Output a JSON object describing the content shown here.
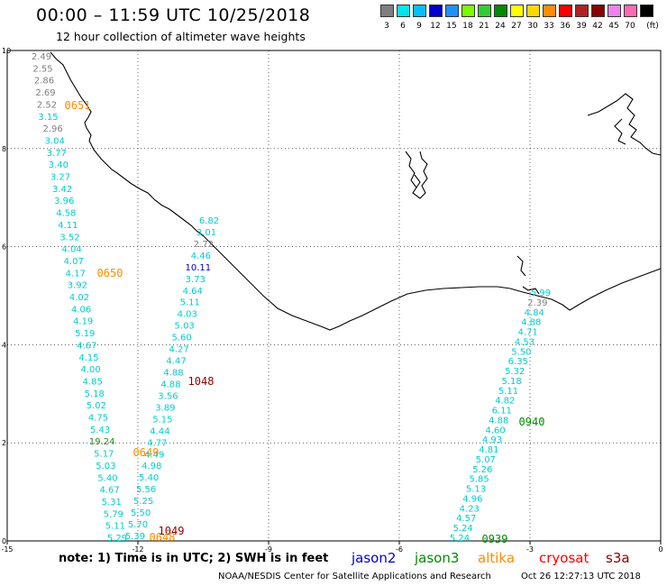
{
  "title": "00:00 – 11:59 UTC 10/25/2018",
  "subtitle": "12 hour collection of altimeter wave heights",
  "legend": {
    "unit_label": "(ft)",
    "bins": [
      {
        "label": "3",
        "color": "#7f7f7f"
      },
      {
        "label": "6",
        "color": "#00e5ee"
      },
      {
        "label": "9",
        "color": "#00bfff"
      },
      {
        "label": "12",
        "color": "#0000cd"
      },
      {
        "label": "15",
        "color": "#1e90ff"
      },
      {
        "label": "18",
        "color": "#7cfc00"
      },
      {
        "label": "21",
        "color": "#32cd32"
      },
      {
        "label": "24",
        "color": "#008b00"
      },
      {
        "label": "27",
        "color": "#ffff00"
      },
      {
        "label": "30",
        "color": "#ffd700"
      },
      {
        "label": "33",
        "color": "#ff8c00"
      },
      {
        "label": "36",
        "color": "#ff0000"
      },
      {
        "label": "39",
        "color": "#b22222"
      },
      {
        "label": "42",
        "color": "#8b0000"
      },
      {
        "label": "45",
        "color": "#ee82ee"
      },
      {
        "label": "70",
        "color": "#ff69b4"
      },
      {
        "label": "",
        "color": "#000000"
      }
    ]
  },
  "axes": {
    "x_ticks": [
      "-15",
      "-12",
      "-9",
      "-6",
      "-3",
      "0"
    ],
    "y_ticks": [
      "0",
      "2",
      "4",
      "6",
      "8",
      "10"
    ]
  },
  "tracks": [
    {
      "name": "track-west",
      "points": [
        {
          "v": "2.49",
          "c": "#7f7f7f"
        },
        {
          "v": "2.55",
          "c": "#7f7f7f"
        },
        {
          "v": "2.86",
          "c": "#7f7f7f"
        },
        {
          "v": "2.69",
          "c": "#7f7f7f"
        },
        {
          "v": "2.52",
          "c": "#7f7f7f"
        },
        {
          "v": "3.15",
          "c": "#00cdcd"
        },
        {
          "v": "2.96",
          "c": "#7f7f7f"
        },
        {
          "v": "3.04",
          "c": "#00cdcd"
        },
        {
          "v": "3.77",
          "c": "#00cdcd"
        },
        {
          "v": "3.40",
          "c": "#00cdcd"
        },
        {
          "v": "3.27",
          "c": "#00cdcd"
        },
        {
          "v": "3.42",
          "c": "#00cdcd"
        },
        {
          "v": "3.96",
          "c": "#00cdcd"
        },
        {
          "v": "4.58",
          "c": "#00cdcd"
        },
        {
          "v": "4.11",
          "c": "#00cdcd"
        },
        {
          "v": "3.52",
          "c": "#00cdcd"
        },
        {
          "v": "4.04",
          "c": "#00cdcd"
        },
        {
          "v": "4.07",
          "c": "#00cdcd"
        },
        {
          "v": "4.17",
          "c": "#00cdcd"
        },
        {
          "v": "3.92",
          "c": "#00cdcd"
        },
        {
          "v": "4.02",
          "c": "#00cdcd"
        },
        {
          "v": "4.06",
          "c": "#00cdcd"
        },
        {
          "v": "4.19",
          "c": "#00cdcd"
        },
        {
          "v": "5.19",
          "c": "#00cdcd"
        },
        {
          "v": "4.67",
          "c": "#00cdcd"
        },
        {
          "v": "4.15",
          "c": "#00cdcd"
        },
        {
          "v": "4.00",
          "c": "#00cdcd"
        },
        {
          "v": "4.85",
          "c": "#00cdcd"
        },
        {
          "v": "5.18",
          "c": "#00cdcd"
        },
        {
          "v": "5.02",
          "c": "#00cdcd"
        },
        {
          "v": "4.75",
          "c": "#00cdcd"
        },
        {
          "v": "5.43",
          "c": "#00cdcd"
        },
        {
          "v": "19.24",
          "c": "#228b22"
        },
        {
          "v": "5.17",
          "c": "#00cdcd"
        },
        {
          "v": "5.03",
          "c": "#00cdcd"
        },
        {
          "v": "5.40",
          "c": "#00cdcd"
        },
        {
          "v": "4.67",
          "c": "#00cdcd"
        },
        {
          "v": "5.31",
          "c": "#00cdcd"
        },
        {
          "v": "5.79",
          "c": "#00cdcd"
        },
        {
          "v": "5.11",
          "c": "#00cdcd"
        },
        {
          "v": "5.29",
          "c": "#00cdcd"
        }
      ]
    },
    {
      "name": "track-middle",
      "points": [
        {
          "v": "6.82",
          "c": "#00cdcd"
        },
        {
          "v": "3.01",
          "c": "#00cdcd"
        },
        {
          "v": "2.72",
          "c": "#7f7f7f"
        },
        {
          "v": "4.46",
          "c": "#00cdcd"
        },
        {
          "v": "10.11",
          "c": "#0000cd"
        },
        {
          "v": "3.73",
          "c": "#00cdcd"
        },
        {
          "v": "4.64",
          "c": "#00cdcd"
        },
        {
          "v": "5.11",
          "c": "#00cdcd"
        },
        {
          "v": "4.03",
          "c": "#00cdcd"
        },
        {
          "v": "5.03",
          "c": "#00cdcd"
        },
        {
          "v": "5.60",
          "c": "#00cdcd"
        },
        {
          "v": "4.27",
          "c": "#00cdcd"
        },
        {
          "v": "4.47",
          "c": "#00cdcd"
        },
        {
          "v": "4.88",
          "c": "#00cdcd"
        },
        {
          "v": "4.88",
          "c": "#00cdcd"
        },
        {
          "v": "3.56",
          "c": "#00cdcd"
        },
        {
          "v": "3.89",
          "c": "#00cdcd"
        },
        {
          "v": "5.15",
          "c": "#00cdcd"
        },
        {
          "v": "4.44",
          "c": "#00cdcd"
        },
        {
          "v": "4.77",
          "c": "#00cdcd"
        },
        {
          "v": "4.49",
          "c": "#00cdcd"
        },
        {
          "v": "4.98",
          "c": "#00cdcd"
        },
        {
          "v": "5.40",
          "c": "#00cdcd"
        },
        {
          "v": "5.56",
          "c": "#00cdcd"
        },
        {
          "v": "5.25",
          "c": "#00cdcd"
        },
        {
          "v": "5.50",
          "c": "#00cdcd"
        },
        {
          "v": "5.70",
          "c": "#00cdcd"
        },
        {
          "v": "5.39",
          "c": "#00cdcd"
        }
      ]
    },
    {
      "name": "track-east",
      "points": [
        {
          "v": "5.99",
          "c": "#00cdcd"
        },
        {
          "v": "2.39",
          "c": "#7f7f7f"
        },
        {
          "v": "4.84",
          "c": "#00cdcd"
        },
        {
          "v": "4.88",
          "c": "#00cdcd"
        },
        {
          "v": "4.71",
          "c": "#00cdcd"
        },
        {
          "v": "4.53",
          "c": "#00cdcd"
        },
        {
          "v": "5.50",
          "c": "#00cdcd"
        },
        {
          "v": "6.35",
          "c": "#00cdcd"
        },
        {
          "v": "5.32",
          "c": "#00cdcd"
        },
        {
          "v": "5.18",
          "c": "#00cdcd"
        },
        {
          "v": "5.11",
          "c": "#00cdcd"
        },
        {
          "v": "4.82",
          "c": "#00cdcd"
        },
        {
          "v": "6.11",
          "c": "#00cdcd"
        },
        {
          "v": "4.88",
          "c": "#00cdcd"
        },
        {
          "v": "4.60",
          "c": "#00cdcd"
        },
        {
          "v": "4.93",
          "c": "#00cdcd"
        },
        {
          "v": "4.81",
          "c": "#00cdcd"
        },
        {
          "v": "5.07",
          "c": "#00cdcd"
        },
        {
          "v": "5.26",
          "c": "#00cdcd"
        },
        {
          "v": "5.85",
          "c": "#00cdcd"
        },
        {
          "v": "5.13",
          "c": "#00cdcd"
        },
        {
          "v": "4.96",
          "c": "#00cdcd"
        },
        {
          "v": "4.23",
          "c": "#00cdcd"
        },
        {
          "v": "4.57",
          "c": "#00cdcd"
        },
        {
          "v": "5.24",
          "c": "#00cdcd"
        },
        {
          "v": "5.24",
          "c": "#00cdcd"
        }
      ]
    }
  ],
  "time_labels": [
    {
      "v": "0651",
      "c": "#ff8c00"
    },
    {
      "v": "0650",
      "c": "#ff8c00"
    },
    {
      "v": "1048",
      "c": "#8b0000"
    },
    {
      "v": "0649",
      "c": "#ff8c00"
    },
    {
      "v": "1049",
      "c": "#8b0000"
    },
    {
      "v": "0648",
      "c": "#ff8c00"
    },
    {
      "v": "0940",
      "c": "#008b00"
    },
    {
      "v": "0939",
      "c": "#008b00"
    }
  ],
  "note": "note: 1) Time is in UTC; 2) SWH is in feet",
  "satellites": [
    {
      "name": "jason2",
      "color": "#0000cd"
    },
    {
      "name": "jason3",
      "color": "#008b00"
    },
    {
      "name": "altika",
      "color": "#ff8c00"
    },
    {
      "name": "cryosat",
      "color": "#ff0000"
    },
    {
      "name": "s3a",
      "color": "#8b0000"
    }
  ],
  "credit": "NOAA/NESDIS Center for Satellite Applications and Research",
  "timestamp": "Oct 26 12:27:13 UTC 2018"
}
